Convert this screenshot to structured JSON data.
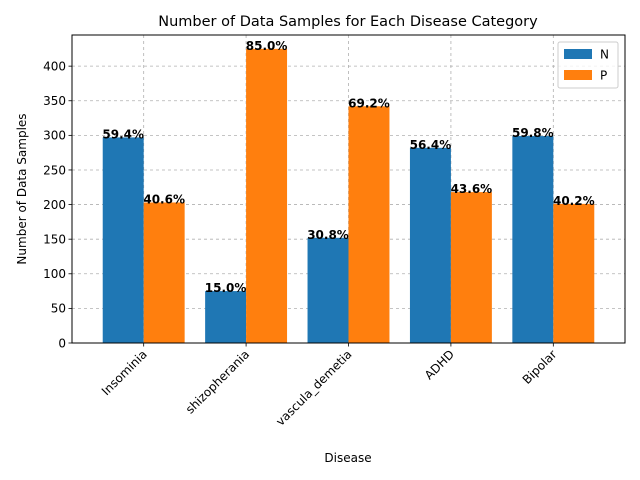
{
  "chart_data": {
    "type": "bar",
    "title": "Number of Data Samples for Each Disease Category",
    "xlabel": "Disease",
    "ylabel": "Number of Data Samples",
    "categories": [
      "Insominia",
      "shizopherania",
      "vascula_demetia",
      "ADHD",
      "Bipolar"
    ],
    "series": [
      {
        "name": "N",
        "color": "#1f77b4",
        "values": [
          297,
          75,
          152,
          282,
          299
        ],
        "labels": [
          "59.4%",
          "15.0%",
          "30.8%",
          "56.4%",
          "59.8%"
        ]
      },
      {
        "name": "P",
        "color": "#ff7f0e",
        "values": [
          203,
          425,
          342,
          218,
          201
        ],
        "labels": [
          "40.6%",
          "85.0%",
          "69.2%",
          "43.6%",
          "40.2%"
        ]
      }
    ],
    "ylim": [
      0,
      445
    ],
    "yticks": [
      0,
      50,
      100,
      150,
      200,
      250,
      300,
      350,
      400
    ],
    "grid": true,
    "grid_style": "dashed",
    "legend_position": "top-right",
    "xtick_rotation": 45
  }
}
